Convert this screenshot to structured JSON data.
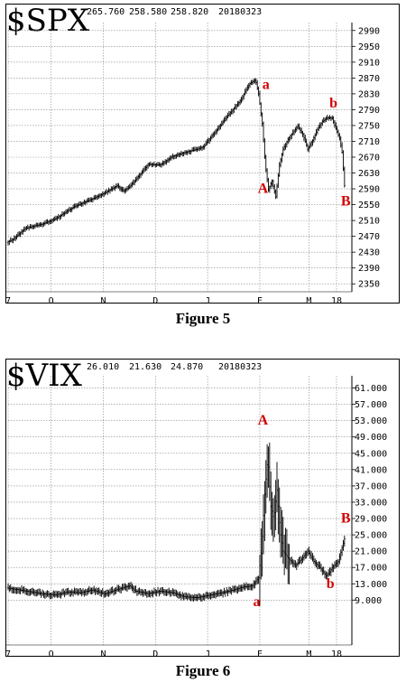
{
  "chart_data": [
    {
      "type": "bar",
      "symbol": "$SPX",
      "header_values": [
        "265.760",
        "258.580",
        "258.820",
        "20180323"
      ],
      "caption": "Figure 5",
      "y_ticks": [
        "2990",
        "2950",
        "2910",
        "2870",
        "2830",
        "2790",
        "2750",
        "2710",
        "2670",
        "2630",
        "2590",
        "2550",
        "2510",
        "2470",
        "2430",
        "2390",
        "2350"
      ],
      "ylim": [
        2330,
        3010
      ],
      "x_ticks": [
        {
          "label": "7",
          "week": 0
        },
        {
          "label": "O",
          "week": 7
        },
        {
          "label": "N",
          "week": 15.5
        },
        {
          "label": "D",
          "week": 24
        },
        {
          "label": "J",
          "week": 32.5
        },
        {
          "label": "F",
          "week": 41
        },
        {
          "label": "M",
          "week": 49
        },
        {
          "label": "18",
          "week": 53.5
        }
      ],
      "xlim": [
        0,
        56
      ],
      "grid": true,
      "annotations": [
        {
          "text": "a",
          "x": 42,
          "y": 2842
        },
        {
          "text": "A",
          "x": 41.5,
          "y": 2580
        },
        {
          "text": "b",
          "x": 53,
          "y": 2795
        },
        {
          "text": "B",
          "x": 55,
          "y": 2548
        }
      ],
      "keypoints": [
        [
          0,
          2455
        ],
        [
          1,
          2462
        ],
        [
          3,
          2490
        ],
        [
          6,
          2502
        ],
        [
          8,
          2515
        ],
        [
          11,
          2545
        ],
        [
          14,
          2565
        ],
        [
          16,
          2580
        ],
        [
          18,
          2598
        ],
        [
          19,
          2584
        ],
        [
          20,
          2595
        ],
        [
          22,
          2632
        ],
        [
          23,
          2652
        ],
        [
          25,
          2650
        ],
        [
          27,
          2672
        ],
        [
          29,
          2682
        ],
        [
          31,
          2690
        ],
        [
          32,
          2696
        ],
        [
          34,
          2735
        ],
        [
          36,
          2775
        ],
        [
          38,
          2812
        ],
        [
          39.5,
          2855
        ],
        [
          40.5,
          2865
        ],
        [
          41,
          2830
        ],
        [
          41.6,
          2755
        ],
        [
          42.1,
          2650
        ],
        [
          42.6,
          2588
        ],
        [
          43.2,
          2610
        ],
        [
          43.8,
          2570
        ],
        [
          44.4,
          2650
        ],
        [
          45,
          2690
        ],
        [
          45.8,
          2715
        ],
        [
          46.6,
          2732
        ],
        [
          47.4,
          2748
        ],
        [
          48.2,
          2728
        ],
        [
          49,
          2690
        ],
        [
          49.8,
          2712
        ],
        [
          50.6,
          2740
        ],
        [
          51.4,
          2760
        ],
        [
          52.2,
          2770
        ],
        [
          53,
          2768
        ],
        [
          53.6,
          2742
        ],
        [
          54.2,
          2718
        ],
        [
          54.6,
          2682
        ],
        [
          55,
          2598
        ]
      ]
    },
    {
      "type": "bar",
      "symbol": "$VIX",
      "header_values": [
        "26.010",
        "21.630",
        "24.870",
        "20180323"
      ],
      "caption": "Figure 6",
      "y_ticks": [
        "61.000",
        "57.000",
        "53.000",
        "49.000",
        "45.000",
        "41.000",
        "37.000",
        "33.000",
        "29.000",
        "25.000",
        "21.000",
        "17.000",
        "13.000",
        "9.000"
      ],
      "ylim": [
        -2,
        64
      ],
      "x_ticks": [
        {
          "label": "7",
          "week": 0
        },
        {
          "label": "O",
          "week": 7
        },
        {
          "label": "N",
          "week": 15.5
        },
        {
          "label": "D",
          "week": 24
        },
        {
          "label": "J",
          "week": 32.5
        },
        {
          "label": "F",
          "week": 41
        },
        {
          "label": "M",
          "week": 49
        },
        {
          "label": "18",
          "week": 53.5
        }
      ],
      "xlim": [
        0,
        56
      ],
      "grid": true,
      "annotations": [
        {
          "text": "A",
          "x": 41.5,
          "y": 52
        },
        {
          "text": "B",
          "x": 55,
          "y": 28
        },
        {
          "text": "b",
          "x": 52.5,
          "y": 12
        },
        {
          "text": "a",
          "x": 40.5,
          "y": 7.5
        }
      ],
      "keypoints": [
        [
          0,
          12.0
        ],
        [
          2,
          11.5
        ],
        [
          4,
          11.0
        ],
        [
          6,
          10.5
        ],
        [
          8,
          10.3
        ],
        [
          10,
          11.0
        ],
        [
          12,
          10.8
        ],
        [
          14,
          11.5
        ],
        [
          16,
          10.5
        ],
        [
          18,
          11.6
        ],
        [
          20,
          12.5
        ],
        [
          21,
          11.2
        ],
        [
          23,
          10.6
        ],
        [
          25,
          11.2
        ],
        [
          27,
          10.8
        ],
        [
          29,
          9.8
        ],
        [
          31,
          9.6
        ],
        [
          33,
          10.2
        ],
        [
          35,
          10.8
        ],
        [
          37,
          11.5
        ],
        [
          38.5,
          12.2
        ],
        [
          40,
          12.5
        ],
        [
          41,
          14.5
        ],
        [
          41.5,
          22
        ],
        [
          42,
          35
        ],
        [
          42.5,
          44
        ],
        [
          43,
          32
        ],
        [
          43.5,
          29
        ],
        [
          44,
          36
        ],
        [
          44.5,
          26
        ],
        [
          45,
          21
        ],
        [
          46,
          19
        ],
        [
          47,
          17.5
        ],
        [
          48,
          19
        ],
        [
          49,
          21
        ],
        [
          50,
          18.5
        ],
        [
          51,
          17
        ],
        [
          52,
          15
        ],
        [
          52.5,
          15.6
        ],
        [
          53,
          17
        ],
        [
          54,
          18.5
        ],
        [
          55,
          24
        ]
      ]
    }
  ]
}
